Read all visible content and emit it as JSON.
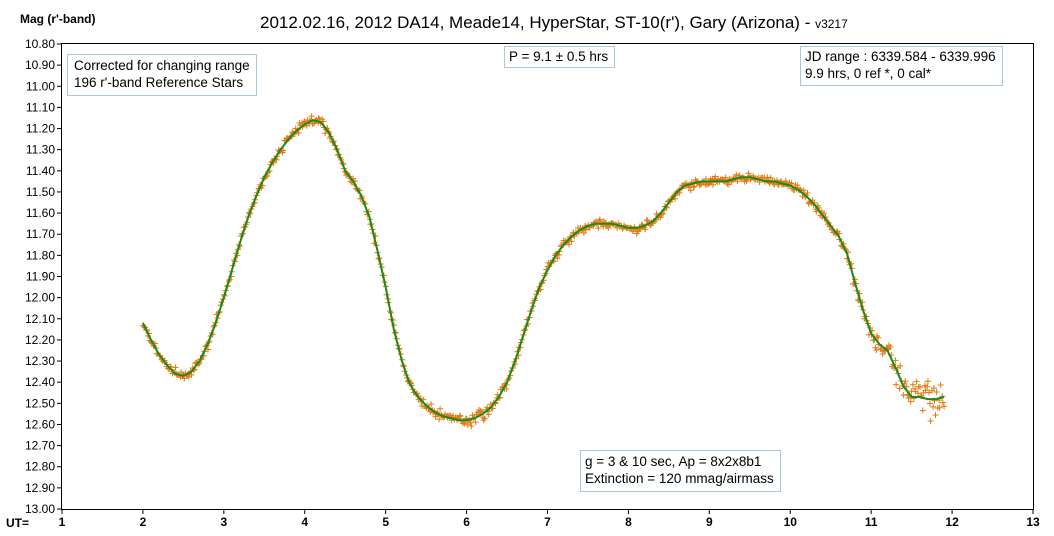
{
  "chart_data": {
    "type": "scatter",
    "title": "2012.02.16, 2012 DA14, Meade14, HyperStar, ST-10(r'), Gary (Arizona) - ",
    "title_version": "v3217",
    "ylabel": "Mag (r'-band)",
    "xlabel": "UT=",
    "xlim": [
      1,
      13
    ],
    "ylim": [
      10.8,
      13.0
    ],
    "y_inverted": true,
    "x_ticks": [
      "1",
      "2",
      "3",
      "4",
      "5",
      "6",
      "7",
      "8",
      "9",
      "10",
      "11",
      "12",
      "13"
    ],
    "y_ticks": [
      "10.80",
      "10.90",
      "11.00",
      "11.10",
      "11.20",
      "11.30",
      "11.40",
      "11.50",
      "11.60",
      "11.70",
      "11.80",
      "11.90",
      "12.00",
      "12.10",
      "12.20",
      "12.30",
      "12.40",
      "12.50",
      "12.60",
      "12.70",
      "12.80",
      "12.90",
      "13.00"
    ],
    "grid": false,
    "marker_color": "#e07a10",
    "fit_color": "#1a8a1a",
    "annotations": {
      "corrected": "Corrected for changing range",
      "refstars": "196 r'-band Reference Stars",
      "period": "P = 9.1 ± 0.5 hrs",
      "jd_range": "JD range : 6339.584 - 6339.996",
      "summary": "9.9 hrs, 0 ref *, 0 cal*",
      "exposure": "g = 3 & 10 sec, Ap = 8x2x8b1",
      "extinction": "Extinction = 120 mmag/airmass"
    },
    "series": [
      {
        "values_description": "model fit",
        "x": [
          2.0,
          2.1,
          2.2,
          2.3,
          2.4,
          2.5,
          2.6,
          2.7,
          2.8,
          2.9,
          3.0,
          3.1,
          3.2,
          3.3,
          3.4,
          3.5,
          3.6,
          3.7,
          3.8,
          3.9,
          4.0,
          4.1,
          4.2,
          4.3,
          4.4,
          4.5,
          4.6,
          4.7,
          4.8,
          4.9,
          5.0,
          5.1,
          5.2,
          5.3,
          5.4,
          5.5,
          5.6,
          5.7,
          5.8,
          5.9,
          6.0,
          6.1,
          6.2,
          6.3,
          6.4,
          6.5,
          6.6,
          6.7,
          6.8,
          6.9,
          7.0,
          7.1,
          7.2,
          7.3,
          7.4,
          7.5,
          7.6,
          7.7,
          7.8,
          7.9,
          8.0,
          8.1,
          8.2,
          8.3,
          8.4,
          8.5,
          8.6,
          8.7,
          8.8,
          8.9,
          9.0,
          9.1,
          9.2,
          9.3,
          9.4,
          9.5,
          9.6,
          9.7,
          9.8,
          9.9,
          10.0,
          10.1,
          10.2,
          10.3,
          10.4,
          10.5,
          10.6,
          10.7,
          10.8,
          10.9,
          11.0,
          11.1,
          11.2,
          11.3,
          11.4,
          11.5,
          11.6,
          11.7,
          11.8,
          11.9
        ],
        "y": [
          12.12,
          12.2,
          12.27,
          12.32,
          12.36,
          12.37,
          12.35,
          12.3,
          12.22,
          12.12,
          12.0,
          11.87,
          11.74,
          11.62,
          11.52,
          11.43,
          11.36,
          11.3,
          11.25,
          11.21,
          11.18,
          11.16,
          11.17,
          11.22,
          11.3,
          11.4,
          11.45,
          11.52,
          11.62,
          11.78,
          11.95,
          12.15,
          12.3,
          12.41,
          12.47,
          12.51,
          12.54,
          12.56,
          12.57,
          12.58,
          12.58,
          12.57,
          12.55,
          12.52,
          12.47,
          12.4,
          12.3,
          12.18,
          12.06,
          11.95,
          11.87,
          11.8,
          11.75,
          11.71,
          11.68,
          11.66,
          11.65,
          11.65,
          11.65,
          11.66,
          11.67,
          11.67,
          11.66,
          11.64,
          11.6,
          11.55,
          11.5,
          11.47,
          11.46,
          11.45,
          11.45,
          11.45,
          11.45,
          11.44,
          11.43,
          11.43,
          11.44,
          11.45,
          11.45,
          11.46,
          11.47,
          11.49,
          11.52,
          11.56,
          11.61,
          11.66,
          11.71,
          11.79,
          11.93,
          12.06,
          12.17,
          12.22,
          12.25,
          12.33,
          12.42,
          12.47,
          12.47,
          12.48,
          12.48,
          12.47
        ]
      }
    ]
  }
}
